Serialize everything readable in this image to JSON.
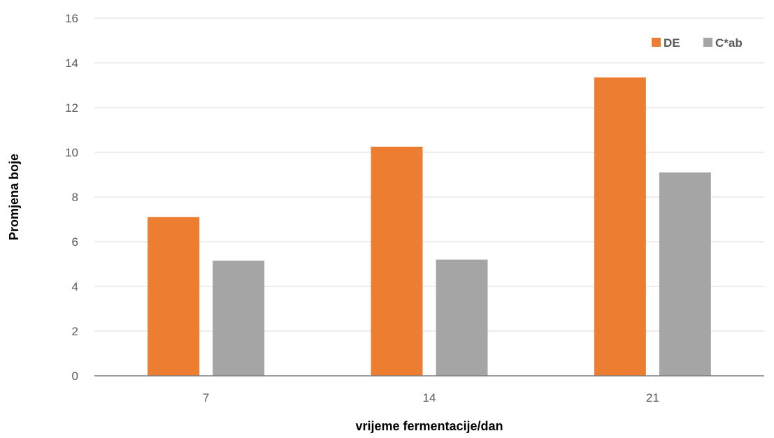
{
  "chart_data": {
    "type": "bar",
    "title": "",
    "xlabel": "vrijeme fermentacije/dan",
    "ylabel": "Promjena boje",
    "categories": [
      "7",
      "14",
      "21"
    ],
    "series": [
      {
        "name": "DE",
        "values": [
          7.1,
          10.25,
          13.35
        ],
        "color": "#ED7D31"
      },
      {
        "name": "C*ab",
        "values": [
          5.15,
          5.2,
          9.1
        ],
        "color": "#A5A5A5"
      }
    ],
    "ylim": [
      0,
      16
    ],
    "yticks": [
      0,
      2,
      4,
      6,
      8,
      10,
      12,
      14,
      16
    ],
    "grid": true,
    "legend_position": "top-right"
  }
}
